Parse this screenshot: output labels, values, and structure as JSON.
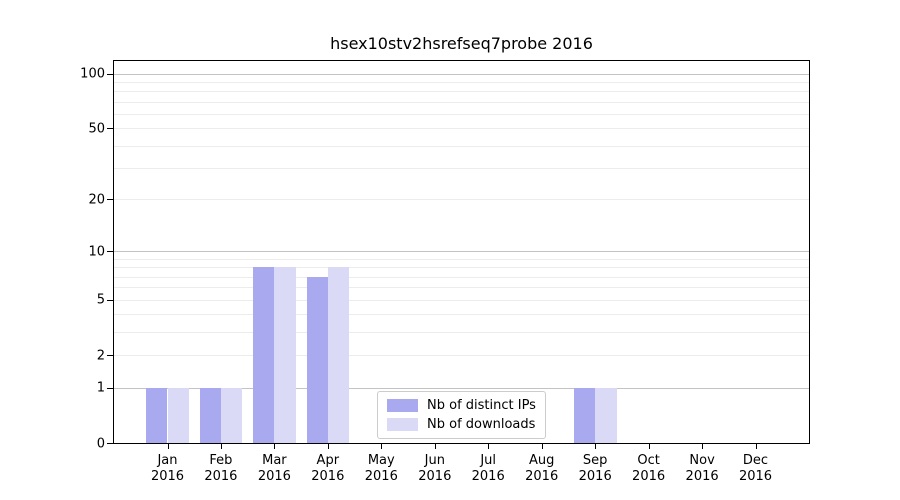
{
  "chart_data": {
    "type": "bar",
    "title": "hsex10stv2hsrefseq7probe 2016",
    "categories": [
      "Jan\n2016",
      "Feb\n2016",
      "Mar\n2016",
      "Apr\n2016",
      "May\n2016",
      "Jun\n2016",
      "Jul\n2016",
      "Aug\n2016",
      "Sep\n2016",
      "Oct\n2016",
      "Nov\n2016",
      "Dec\n2016"
    ],
    "series": [
      {
        "name": "Nb of distinct IPs",
        "color": "#a9a9f0",
        "values": [
          1,
          1,
          8,
          7,
          0,
          0,
          0,
          0,
          1,
          0,
          0,
          0
        ]
      },
      {
        "name": "Nb of downloads",
        "color": "#dadaf6",
        "values": [
          1,
          1,
          8,
          8,
          0,
          0,
          0,
          0,
          1,
          0,
          0,
          0
        ]
      }
    ],
    "yscale": "log1p",
    "ylim": [
      0,
      117
    ],
    "y_ticks": [
      0,
      1,
      2,
      5,
      10,
      20,
      50,
      100
    ],
    "y_major_gridlines": [
      1,
      10,
      100
    ],
    "y_minor_gridlines": [
      2,
      3,
      4,
      5,
      6,
      7,
      8,
      9,
      20,
      30,
      40,
      50,
      60,
      70,
      80,
      90
    ],
    "grid": "on",
    "legend_position": "lower center",
    "xlabel": "",
    "ylabel": ""
  },
  "colors": {
    "background": "#ffffff",
    "spine": "#000000",
    "grid_major": "#c3c3c3",
    "grid_minor": "#ececec",
    "text": "#000000",
    "legend_border": "#cccccc"
  }
}
